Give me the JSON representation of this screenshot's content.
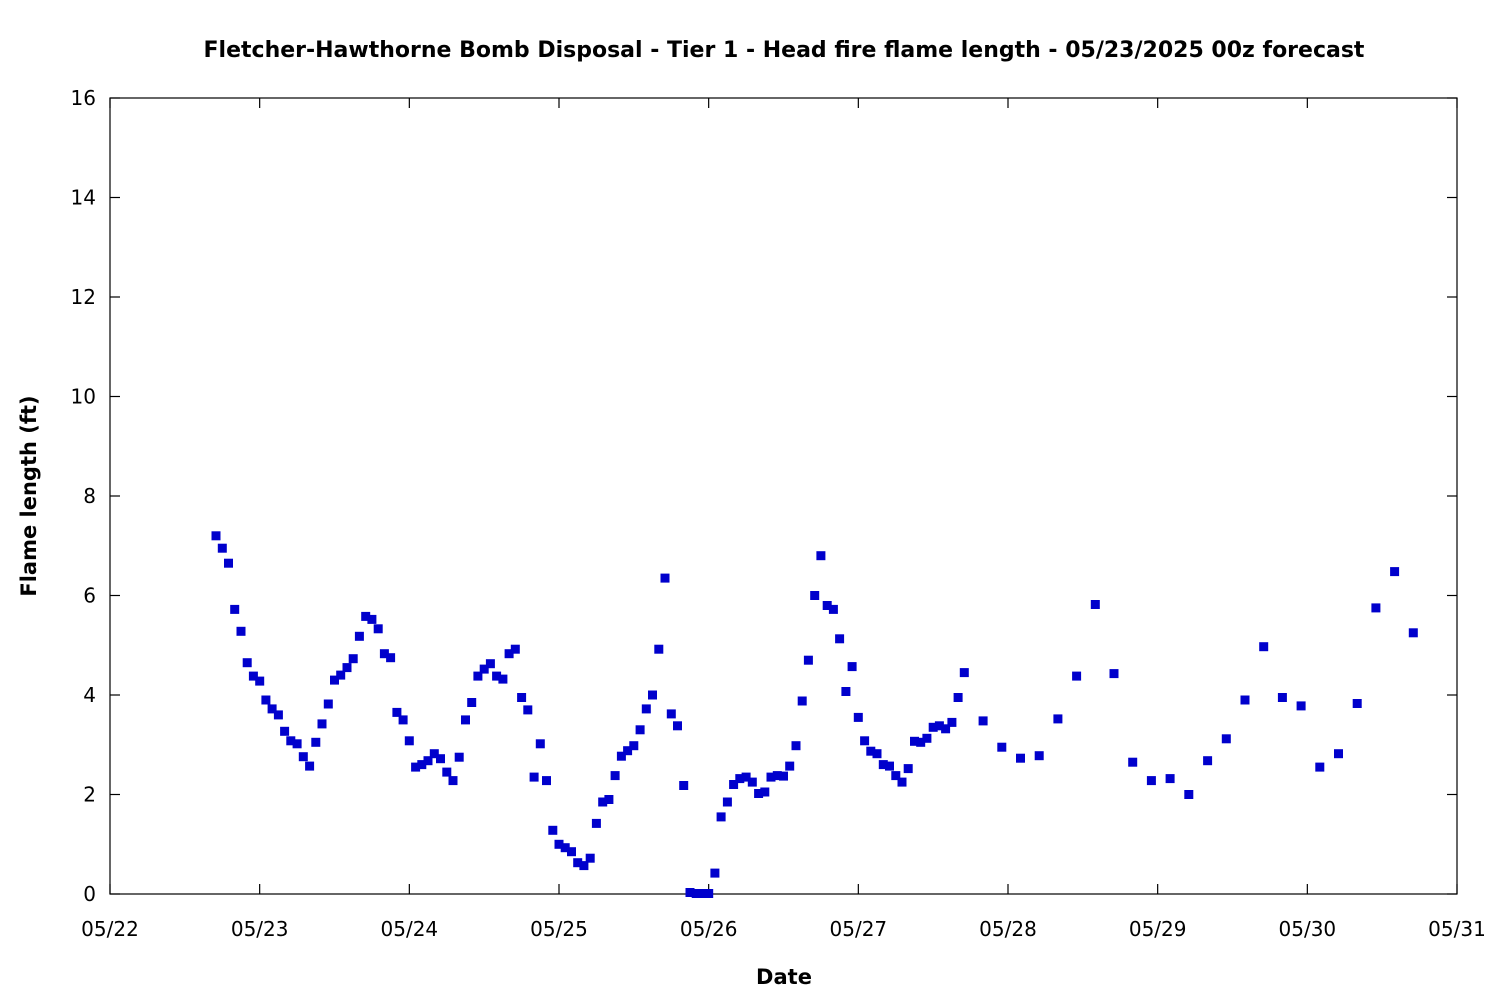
{
  "chart_data": {
    "type": "scatter",
    "title": "Fletcher-Hawthorne Bomb Disposal - Tier 1 - Head fire flame length - 05/23/2025 00z forecast",
    "xlabel": "Date",
    "ylabel": "Flame length (ft)",
    "xlim": [
      "2025-05-22T00:00",
      "2025-05-31T00:00"
    ],
    "ylim": [
      0,
      16
    ],
    "x_ticks": [
      "05/22",
      "05/23",
      "05/24",
      "05/25",
      "05/26",
      "05/27",
      "05/28",
      "05/29",
      "05/30",
      "05/31"
    ],
    "y_ticks": [
      0,
      2,
      4,
      6,
      8,
      10,
      12,
      14,
      16
    ],
    "grid": false,
    "marker_color": "#0000cc",
    "series": [
      {
        "points": [
          [
            "2025-05-22T17:00",
            7.2
          ],
          [
            "2025-05-22T18:00",
            6.95
          ],
          [
            "2025-05-22T19:00",
            6.65
          ],
          [
            "2025-05-22T20:00",
            5.72
          ],
          [
            "2025-05-22T21:00",
            5.28
          ],
          [
            "2025-05-22T22:00",
            4.65
          ],
          [
            "2025-05-22T23:00",
            4.38
          ],
          [
            "2025-05-23T00:00",
            4.28
          ],
          [
            "2025-05-23T01:00",
            3.9
          ],
          [
            "2025-05-23T02:00",
            3.72
          ],
          [
            "2025-05-23T03:00",
            3.6
          ],
          [
            "2025-05-23T04:00",
            3.27
          ],
          [
            "2025-05-23T05:00",
            3.08
          ],
          [
            "2025-05-23T06:00",
            3.02
          ],
          [
            "2025-05-23T07:00",
            2.76
          ],
          [
            "2025-05-23T08:00",
            2.57
          ],
          [
            "2025-05-23T09:00",
            3.05
          ],
          [
            "2025-05-23T10:00",
            3.42
          ],
          [
            "2025-05-23T11:00",
            3.82
          ],
          [
            "2025-05-23T12:00",
            4.3
          ],
          [
            "2025-05-23T13:00",
            4.4
          ],
          [
            "2025-05-23T14:00",
            4.55
          ],
          [
            "2025-05-23T15:00",
            4.73
          ],
          [
            "2025-05-23T16:00",
            5.18
          ],
          [
            "2025-05-23T17:00",
            5.58
          ],
          [
            "2025-05-23T18:00",
            5.52
          ],
          [
            "2025-05-23T19:00",
            5.33
          ],
          [
            "2025-05-23T20:00",
            4.83
          ],
          [
            "2025-05-23T21:00",
            4.75
          ],
          [
            "2025-05-23T22:00",
            3.65
          ],
          [
            "2025-05-23T23:00",
            3.5
          ],
          [
            "2025-05-24T00:00",
            3.08
          ],
          [
            "2025-05-24T01:00",
            2.55
          ],
          [
            "2025-05-24T02:00",
            2.6
          ],
          [
            "2025-05-24T03:00",
            2.68
          ],
          [
            "2025-05-24T04:00",
            2.82
          ],
          [
            "2025-05-24T05:00",
            2.72
          ],
          [
            "2025-05-24T06:00",
            2.45
          ],
          [
            "2025-05-24T07:00",
            2.28
          ],
          [
            "2025-05-24T08:00",
            2.75
          ],
          [
            "2025-05-24T09:00",
            3.5
          ],
          [
            "2025-05-24T10:00",
            3.85
          ],
          [
            "2025-05-24T11:00",
            4.38
          ],
          [
            "2025-05-24T12:00",
            4.52
          ],
          [
            "2025-05-24T13:00",
            4.63
          ],
          [
            "2025-05-24T14:00",
            4.38
          ],
          [
            "2025-05-24T15:00",
            4.32
          ],
          [
            "2025-05-24T16:00",
            4.83
          ],
          [
            "2025-05-24T17:00",
            4.92
          ],
          [
            "2025-05-24T18:00",
            3.95
          ],
          [
            "2025-05-24T19:00",
            3.7
          ],
          [
            "2025-05-24T20:00",
            2.35
          ],
          [
            "2025-05-24T21:00",
            3.02
          ],
          [
            "2025-05-24T22:00",
            2.28
          ],
          [
            "2025-05-24T23:00",
            1.28
          ],
          [
            "2025-05-25T00:00",
            1.0
          ],
          [
            "2025-05-25T01:00",
            0.93
          ],
          [
            "2025-05-25T02:00",
            0.85
          ],
          [
            "2025-05-25T03:00",
            0.63
          ],
          [
            "2025-05-25T04:00",
            0.57
          ],
          [
            "2025-05-25T05:00",
            0.72
          ],
          [
            "2025-05-25T06:00",
            1.42
          ],
          [
            "2025-05-25T07:00",
            1.85
          ],
          [
            "2025-05-25T08:00",
            1.9
          ],
          [
            "2025-05-25T09:00",
            2.38
          ],
          [
            "2025-05-25T10:00",
            2.77
          ],
          [
            "2025-05-25T11:00",
            2.88
          ],
          [
            "2025-05-25T12:00",
            2.98
          ],
          [
            "2025-05-25T13:00",
            3.3
          ],
          [
            "2025-05-25T14:00",
            3.72
          ],
          [
            "2025-05-25T15:00",
            4.0
          ],
          [
            "2025-05-25T16:00",
            4.92
          ],
          [
            "2025-05-25T17:00",
            6.35
          ],
          [
            "2025-05-25T18:00",
            3.62
          ],
          [
            "2025-05-25T19:00",
            3.38
          ],
          [
            "2025-05-25T20:00",
            2.18
          ],
          [
            "2025-05-25T21:00",
            0.03
          ],
          [
            "2025-05-25T22:00",
            0.01
          ],
          [
            "2025-05-25T23:00",
            0.01
          ],
          [
            "2025-05-26T00:00",
            0.01
          ],
          [
            "2025-05-26T01:00",
            0.42
          ],
          [
            "2025-05-26T02:00",
            1.55
          ],
          [
            "2025-05-26T03:00",
            1.85
          ],
          [
            "2025-05-26T04:00",
            2.2
          ],
          [
            "2025-05-26T05:00",
            2.32
          ],
          [
            "2025-05-26T06:00",
            2.35
          ],
          [
            "2025-05-26T07:00",
            2.25
          ],
          [
            "2025-05-26T08:00",
            2.02
          ],
          [
            "2025-05-26T09:00",
            2.05
          ],
          [
            "2025-05-26T10:00",
            2.35
          ],
          [
            "2025-05-26T11:00",
            2.38
          ],
          [
            "2025-05-26T12:00",
            2.37
          ],
          [
            "2025-05-26T13:00",
            2.57
          ],
          [
            "2025-05-26T14:00",
            2.98
          ],
          [
            "2025-05-26T15:00",
            3.88
          ],
          [
            "2025-05-26T16:00",
            4.7
          ],
          [
            "2025-05-26T17:00",
            6.0
          ],
          [
            "2025-05-26T18:00",
            6.8
          ],
          [
            "2025-05-26T19:00",
            5.8
          ],
          [
            "2025-05-26T20:00",
            5.72
          ],
          [
            "2025-05-26T21:00",
            5.13
          ],
          [
            "2025-05-26T22:00",
            4.07
          ],
          [
            "2025-05-26T23:00",
            4.57
          ],
          [
            "2025-05-27T00:00",
            3.55
          ],
          [
            "2025-05-27T01:00",
            3.08
          ],
          [
            "2025-05-27T02:00",
            2.87
          ],
          [
            "2025-05-27T03:00",
            2.82
          ],
          [
            "2025-05-27T04:00",
            2.6
          ],
          [
            "2025-05-27T05:00",
            2.57
          ],
          [
            "2025-05-27T06:00",
            2.38
          ],
          [
            "2025-05-27T07:00",
            2.25
          ],
          [
            "2025-05-27T08:00",
            2.52
          ],
          [
            "2025-05-27T09:00",
            3.07
          ],
          [
            "2025-05-27T10:00",
            3.05
          ],
          [
            "2025-05-27T11:00",
            3.13
          ],
          [
            "2025-05-27T12:00",
            3.35
          ],
          [
            "2025-05-27T13:00",
            3.38
          ],
          [
            "2025-05-27T14:00",
            3.32
          ],
          [
            "2025-05-27T15:00",
            3.45
          ],
          [
            "2025-05-27T16:00",
            3.95
          ],
          [
            "2025-05-27T17:00",
            4.45
          ],
          [
            "2025-05-27T20:00",
            3.48
          ],
          [
            "2025-05-27T23:00",
            2.95
          ],
          [
            "2025-05-28T02:00",
            2.73
          ],
          [
            "2025-05-28T05:00",
            2.78
          ],
          [
            "2025-05-28T08:00",
            3.52
          ],
          [
            "2025-05-28T11:00",
            4.38
          ],
          [
            "2025-05-28T14:00",
            5.82
          ],
          [
            "2025-05-28T17:00",
            4.43
          ],
          [
            "2025-05-28T20:00",
            2.65
          ],
          [
            "2025-05-28T23:00",
            2.28
          ],
          [
            "2025-05-29T02:00",
            2.32
          ],
          [
            "2025-05-29T05:00",
            2.0
          ],
          [
            "2025-05-29T08:00",
            2.68
          ],
          [
            "2025-05-29T11:00",
            3.12
          ],
          [
            "2025-05-29T14:00",
            3.9
          ],
          [
            "2025-05-29T17:00",
            4.97
          ],
          [
            "2025-05-29T20:00",
            3.95
          ],
          [
            "2025-05-29T23:00",
            3.78
          ],
          [
            "2025-05-30T02:00",
            2.55
          ],
          [
            "2025-05-30T05:00",
            2.82
          ],
          [
            "2025-05-30T08:00",
            3.83
          ],
          [
            "2025-05-30T11:00",
            5.75
          ],
          [
            "2025-05-30T14:00",
            6.48
          ],
          [
            "2025-05-30T17:00",
            5.25
          ]
        ]
      }
    ]
  }
}
